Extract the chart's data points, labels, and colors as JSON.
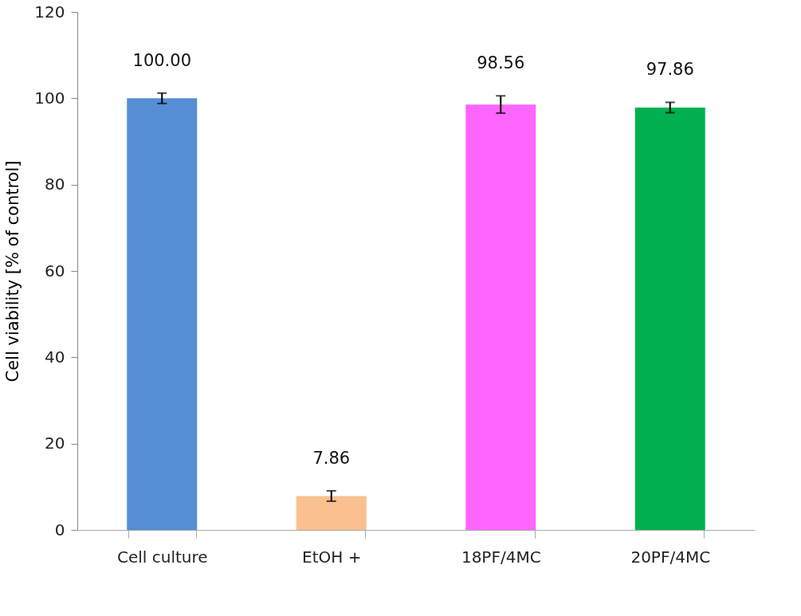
{
  "chart_data": {
    "type": "bar",
    "ylabel": "Cell viability [% of control]",
    "categories": [
      "Cell culture",
      "EtOH +",
      "18PF/4MC",
      "20PF/4MC"
    ],
    "values": [
      100.0,
      7.86,
      98.56,
      97.86
    ],
    "colors": [
      "#558ed5",
      "#fac090",
      "#ff66ff",
      "#00b050"
    ],
    "errors": [
      1.2,
      1.2,
      2.0,
      1.2
    ],
    "value_labels": [
      "100.00",
      "7.86",
      "98.56",
      "97.86"
    ],
    "ylim": [
      0,
      120
    ],
    "yticks": [
      0,
      20,
      40,
      60,
      80,
      100,
      120
    ],
    "grid": false
  }
}
